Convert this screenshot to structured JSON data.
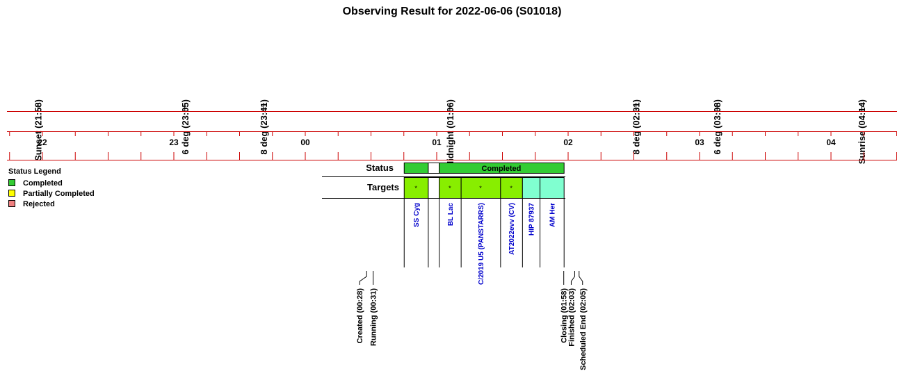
{
  "title": "Observing Result for 2022-06-06 (S01018)",
  "colors": {
    "axis_red": "#cc0000",
    "completed": "#33cc33",
    "partially_completed": "#ffff00",
    "rejected": "#f08080",
    "target_green": "#88ee00",
    "target_cyan": "#80ffd0",
    "target_text": "#0000cc"
  },
  "events_top": [
    {
      "label": "Sunset (21:58)",
      "time": "21:58"
    },
    {
      "label": "6 deg (23:05)",
      "time": "23:05"
    },
    {
      "label": "8 deg (23:41)",
      "time": "23:41"
    },
    {
      "label": "Midnight (01:06)",
      "time": "01:06"
    },
    {
      "label": "8 deg (02:31)",
      "time": "02:31"
    },
    {
      "label": "6 deg (03:08)",
      "time": "03:08"
    },
    {
      "label": "Sunrise (04:14)",
      "time": "04:14"
    }
  ],
  "hour_ticks": [
    {
      "label": "22",
      "time": "22:00"
    },
    {
      "label": "23",
      "time": "23:00"
    },
    {
      "label": "00",
      "time": "00:00"
    },
    {
      "label": "01",
      "time": "01:00"
    },
    {
      "label": "02",
      "time": "02:00"
    },
    {
      "label": "03",
      "time": "03:00"
    },
    {
      "label": "04",
      "time": "04:00"
    }
  ],
  "legend": {
    "title": "Status Legend",
    "items": [
      {
        "label": "Completed",
        "color": "#33cc33"
      },
      {
        "label": "Partially Completed",
        "color": "#ffff00"
      },
      {
        "label": "Rejected",
        "color": "#f08080"
      }
    ]
  },
  "rows": {
    "status_label": "Status",
    "targets_label": "Targets"
  },
  "status_segments": [
    {
      "start": "00:45",
      "end": "00:56",
      "state": "completed",
      "label": ""
    },
    {
      "start": "00:56",
      "end": "01:01",
      "state": "gap",
      "label": ""
    },
    {
      "start": "01:01",
      "end": "01:58",
      "state": "completed",
      "label": "Completed"
    }
  ],
  "targets": [
    {
      "name": "SS Cyg",
      "start": "00:45",
      "end": "00:56",
      "color": "green",
      "mark": "*"
    },
    {
      "name": "",
      "start": "00:56",
      "end": "01:01",
      "color": "none",
      "mark": ""
    },
    {
      "name": "BL Lac",
      "start": "01:01",
      "end": "01:11",
      "color": "green",
      "mark": "*"
    },
    {
      "name": "C/2019 U5 (PANSTARRS)",
      "start": "01:11",
      "end": "01:29",
      "color": "green",
      "mark": "*"
    },
    {
      "name": "AT2022evv (CV)",
      "start": "01:29",
      "end": "01:39",
      "color": "green",
      "mark": "*"
    },
    {
      "name": "HIP 87937",
      "start": "01:39",
      "end": "01:47",
      "color": "cyan",
      "mark": ""
    },
    {
      "name": "AM Her",
      "start": "01:47",
      "end": "01:58",
      "color": "cyan",
      "mark": ""
    }
  ],
  "events_bottom": [
    {
      "label": "Created (00:28)",
      "time": "00:28"
    },
    {
      "label": "Running (00:31)",
      "time": "00:31"
    },
    {
      "label": "Closing (01:58)",
      "time": "01:58"
    },
    {
      "label": "Finished (02:03)",
      "time": "02:03"
    },
    {
      "label": "Scheduled End (02:05)",
      "time": "02:05"
    }
  ]
}
